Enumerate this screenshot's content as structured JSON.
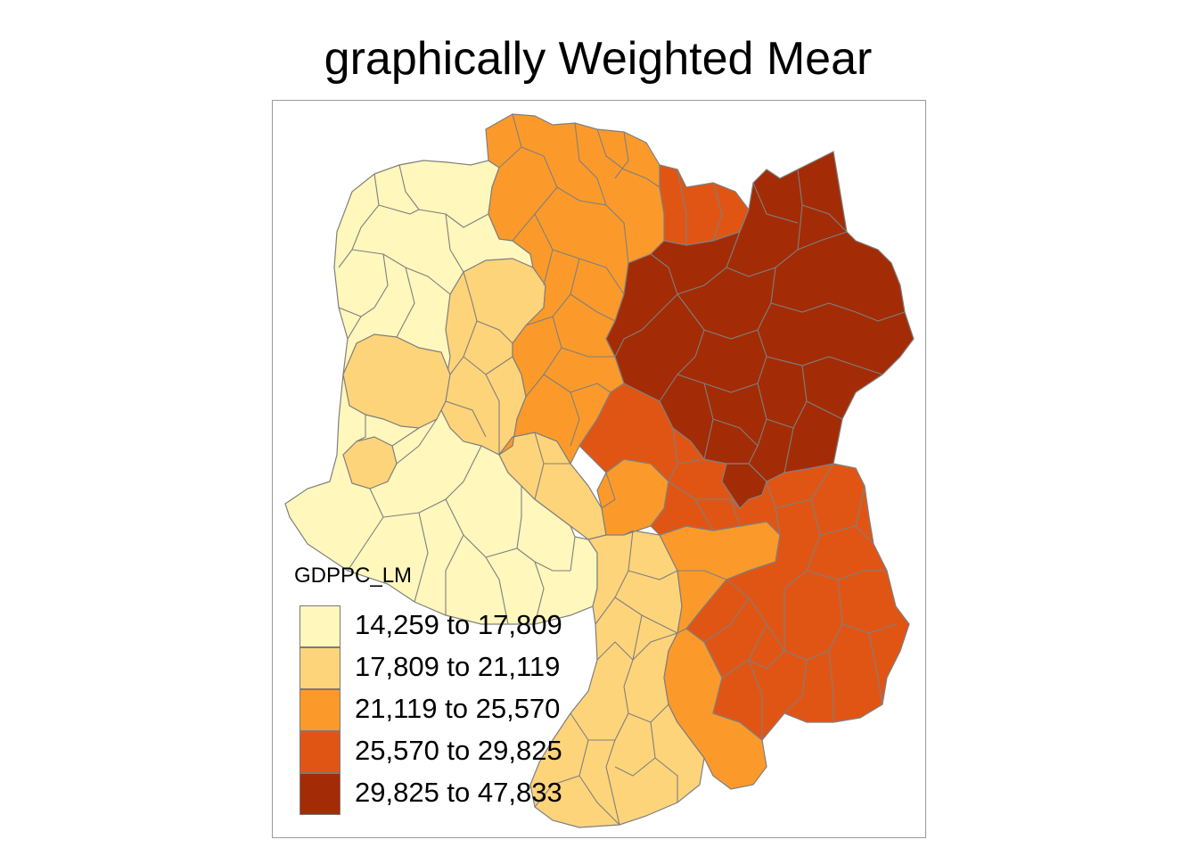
{
  "map": {
    "title": "graphically Weighted Mear",
    "variable": "GDPPC_LM",
    "style": {
      "border_color": "#7f7f7f",
      "frame_color": "#9a9a9a",
      "background": "#ffffff"
    },
    "legend": {
      "title": "GDPPC_LM",
      "placement": "bottom-left",
      "classes": [
        {
          "label": "14,259 to 17,809",
          "min": 14259,
          "max": 17809,
          "color": "#FFF7BC"
        },
        {
          "label": "17,809 to 21,119",
          "min": 17809,
          "max": 21119,
          "color": "#FED47A"
        },
        {
          "label": "21,119 to 25,570",
          "min": 21119,
          "max": 25570,
          "color": "#FB9A2A"
        },
        {
          "label": "25,570 to 29,825",
          "min": 25570,
          "max": 29825,
          "color": "#E15514"
        },
        {
          "label": "29,825 to 47,833",
          "min": 29825,
          "max": 47833,
          "color": "#A32C06"
        }
      ]
    }
  }
}
